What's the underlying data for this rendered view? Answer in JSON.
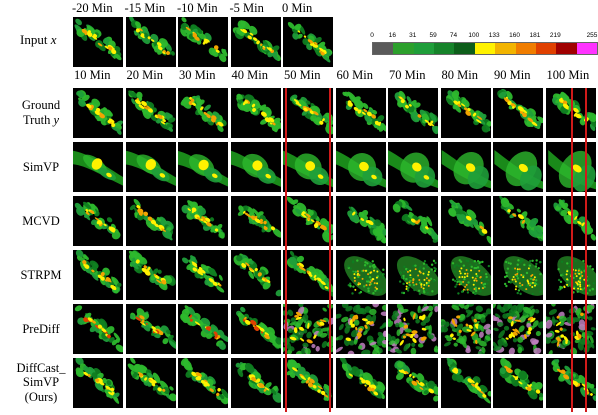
{
  "input_label": "Input x",
  "input_times": [
    "-20 Min",
    "-15 Min",
    "-10 Min",
    "-5 Min",
    "0 Min"
  ],
  "output_times": [
    "10 Min",
    "20 Min",
    "30 Min",
    "40 Min",
    "50 Min",
    "60 Min",
    "70 Min",
    "80 Min",
    "90 Min",
    "100 Min"
  ],
  "rows": [
    {
      "label": "Ground Truth y",
      "style": "gt"
    },
    {
      "label": "SimVP",
      "style": "simvp"
    },
    {
      "label": "MCVD",
      "style": "mcvd"
    },
    {
      "label": "STRPM",
      "style": "strpm"
    },
    {
      "label": "PreDiff",
      "style": "prediff"
    },
    {
      "label": "DiffCast_ SimVP (Ours)",
      "style": "ours"
    }
  ],
  "colorbar": {
    "ticks": [
      "0",
      "16",
      "31",
      "59",
      "74",
      "100",
      "133",
      "160",
      "181",
      "219",
      "255"
    ],
    "colors": [
      "#5a5a5a",
      "#2ca02c",
      "#1f9e3a",
      "#16832a",
      "#0d5e1a",
      "#fff200",
      "#f2b400",
      "#f07d00",
      "#e04000",
      "#a00000",
      "#ff33ff"
    ]
  }
}
